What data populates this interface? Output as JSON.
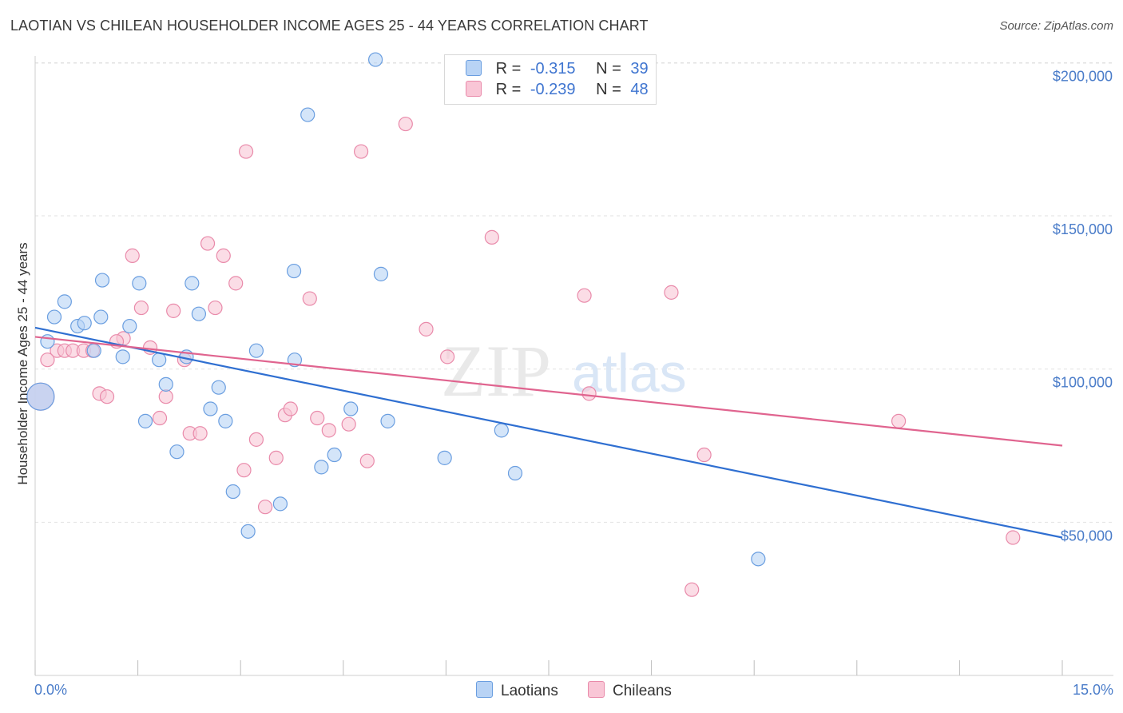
{
  "header": {
    "title": "LAOTIAN VS CHILEAN HOUSEHOLDER INCOME AGES 25 - 44 YEARS CORRELATION CHART",
    "source": "Source: ZipAtlas.com"
  },
  "watermark": {
    "zip": "ZIP",
    "atlas": "atlas"
  },
  "legend": {
    "rows": [
      {
        "r_label": "R =",
        "r_value": "-0.315",
        "n_label": "N =",
        "n_value": "39"
      },
      {
        "r_label": "R =",
        "r_value": "-0.239",
        "n_label": "N =",
        "n_value": "48"
      }
    ]
  },
  "colors": {
    "laotians_fill": "#b8d3f5",
    "laotians_stroke": "#6a9ee0",
    "laotians_line": "#2f6fd1",
    "chileans_fill": "#f9c6d6",
    "chileans_stroke": "#e98aaa",
    "chileans_line": "#e0648f",
    "tick_text": "#4a7cc9",
    "grid": "#e2e2e2"
  },
  "chart_data": {
    "type": "scatter",
    "title": "LAOTIAN VS CHILEAN HOUSEHOLDER INCOME AGES 25 - 44 YEARS CORRELATION CHART",
    "xlabel": "",
    "ylabel": "Householder Income Ages 25 - 44 years",
    "xlim": [
      0,
      15
    ],
    "ylim": [
      0,
      205000
    ],
    "x_tick_labels": [
      "0.0%",
      "15.0%"
    ],
    "y_ticks": [
      50000,
      100000,
      150000,
      200000
    ],
    "y_tick_labels": [
      "$50,000",
      "$100,000",
      "$150,000",
      "$200,000"
    ],
    "grid": true,
    "legend_placement": "top-center",
    "series": [
      {
        "name": "Laotians",
        "color": "#6a9ee0",
        "trend": {
          "x": [
            0,
            15
          ],
          "y": [
            113500,
            45000
          ]
        },
        "points": [
          {
            "x": 4.97,
            "y": 201000
          },
          {
            "x": 3.98,
            "y": 183000
          },
          {
            "x": 0.98,
            "y": 129000
          },
          {
            "x": 1.52,
            "y": 128000
          },
          {
            "x": 2.29,
            "y": 128000
          },
          {
            "x": 3.78,
            "y": 132000
          },
          {
            "x": 5.05,
            "y": 131000
          },
          {
            "x": 0.43,
            "y": 122000
          },
          {
            "x": 0.28,
            "y": 117000
          },
          {
            "x": 0.96,
            "y": 117000
          },
          {
            "x": 2.39,
            "y": 118000
          },
          {
            "x": 0.62,
            "y": 114000
          },
          {
            "x": 0.72,
            "y": 115000
          },
          {
            "x": 1.38,
            "y": 114000
          },
          {
            "x": 0.18,
            "y": 109000
          },
          {
            "x": 0.86,
            "y": 106000
          },
          {
            "x": 1.28,
            "y": 104000
          },
          {
            "x": 1.81,
            "y": 103000
          },
          {
            "x": 2.21,
            "y": 104000
          },
          {
            "x": 3.23,
            "y": 106000
          },
          {
            "x": 3.79,
            "y": 103000
          },
          {
            "x": 1.91,
            "y": 95000
          },
          {
            "x": 2.68,
            "y": 94000
          },
          {
            "x": 0.08,
            "y": 91000
          },
          {
            "x": 1.61,
            "y": 83000
          },
          {
            "x": 2.56,
            "y": 87000
          },
          {
            "x": 2.78,
            "y": 83000
          },
          {
            "x": 4.61,
            "y": 87000
          },
          {
            "x": 5.15,
            "y": 83000
          },
          {
            "x": 6.81,
            "y": 80000
          },
          {
            "x": 2.07,
            "y": 73000
          },
          {
            "x": 4.37,
            "y": 72000
          },
          {
            "x": 4.18,
            "y": 68000
          },
          {
            "x": 5.98,
            "y": 71000
          },
          {
            "x": 7.01,
            "y": 66000
          },
          {
            "x": 2.89,
            "y": 60000
          },
          {
            "x": 3.58,
            "y": 56000
          },
          {
            "x": 3.11,
            "y": 47000
          },
          {
            "x": 10.56,
            "y": 38000
          }
        ]
      },
      {
        "name": "Chileans",
        "color": "#e98aaa",
        "trend": {
          "x": [
            0,
            15
          ],
          "y": [
            110500,
            75000
          ]
        },
        "points": [
          {
            "x": 5.41,
            "y": 180000
          },
          {
            "x": 3.08,
            "y": 171000
          },
          {
            "x": 4.76,
            "y": 171000
          },
          {
            "x": 6.67,
            "y": 143000
          },
          {
            "x": 2.52,
            "y": 141000
          },
          {
            "x": 1.42,
            "y": 137000
          },
          {
            "x": 2.75,
            "y": 137000
          },
          {
            "x": 2.93,
            "y": 128000
          },
          {
            "x": 9.29,
            "y": 125000
          },
          {
            "x": 8.02,
            "y": 124000
          },
          {
            "x": 4.01,
            "y": 123000
          },
          {
            "x": 1.55,
            "y": 120000
          },
          {
            "x": 2.63,
            "y": 120000
          },
          {
            "x": 2.02,
            "y": 119000
          },
          {
            "x": 5.71,
            "y": 113000
          },
          {
            "x": 1.29,
            "y": 110000
          },
          {
            "x": 1.19,
            "y": 109000
          },
          {
            "x": 1.68,
            "y": 107000
          },
          {
            "x": 0.32,
            "y": 106000
          },
          {
            "x": 0.43,
            "y": 106000
          },
          {
            "x": 0.55,
            "y": 106000
          },
          {
            "x": 0.71,
            "y": 106000
          },
          {
            "x": 0.84,
            "y": 106000
          },
          {
            "x": 0.18,
            "y": 103000
          },
          {
            "x": 2.18,
            "y": 103000
          },
          {
            "x": 6.02,
            "y": 104000
          },
          {
            "x": 0.94,
            "y": 92000
          },
          {
            "x": 1.05,
            "y": 91000
          },
          {
            "x": 1.91,
            "y": 91000
          },
          {
            "x": 8.09,
            "y": 92000
          },
          {
            "x": 1.82,
            "y": 84000
          },
          {
            "x": 3.65,
            "y": 85000
          },
          {
            "x": 3.73,
            "y": 87000
          },
          {
            "x": 4.12,
            "y": 84000
          },
          {
            "x": 12.61,
            "y": 83000
          },
          {
            "x": 4.29,
            "y": 80000
          },
          {
            "x": 4.58,
            "y": 82000
          },
          {
            "x": 2.26,
            "y": 79000
          },
          {
            "x": 2.41,
            "y": 79000
          },
          {
            "x": 3.23,
            "y": 77000
          },
          {
            "x": 3.52,
            "y": 71000
          },
          {
            "x": 4.85,
            "y": 70000
          },
          {
            "x": 9.77,
            "y": 72000
          },
          {
            "x": 3.05,
            "y": 67000
          },
          {
            "x": 3.36,
            "y": 55000
          },
          {
            "x": 14.28,
            "y": 45000
          },
          {
            "x": 9.59,
            "y": 28000
          },
          {
            "x": 0.08,
            "y": 91000
          }
        ]
      }
    ]
  },
  "bottom_legend": {
    "laotians": "Laotians",
    "chileans": "Chileans"
  }
}
